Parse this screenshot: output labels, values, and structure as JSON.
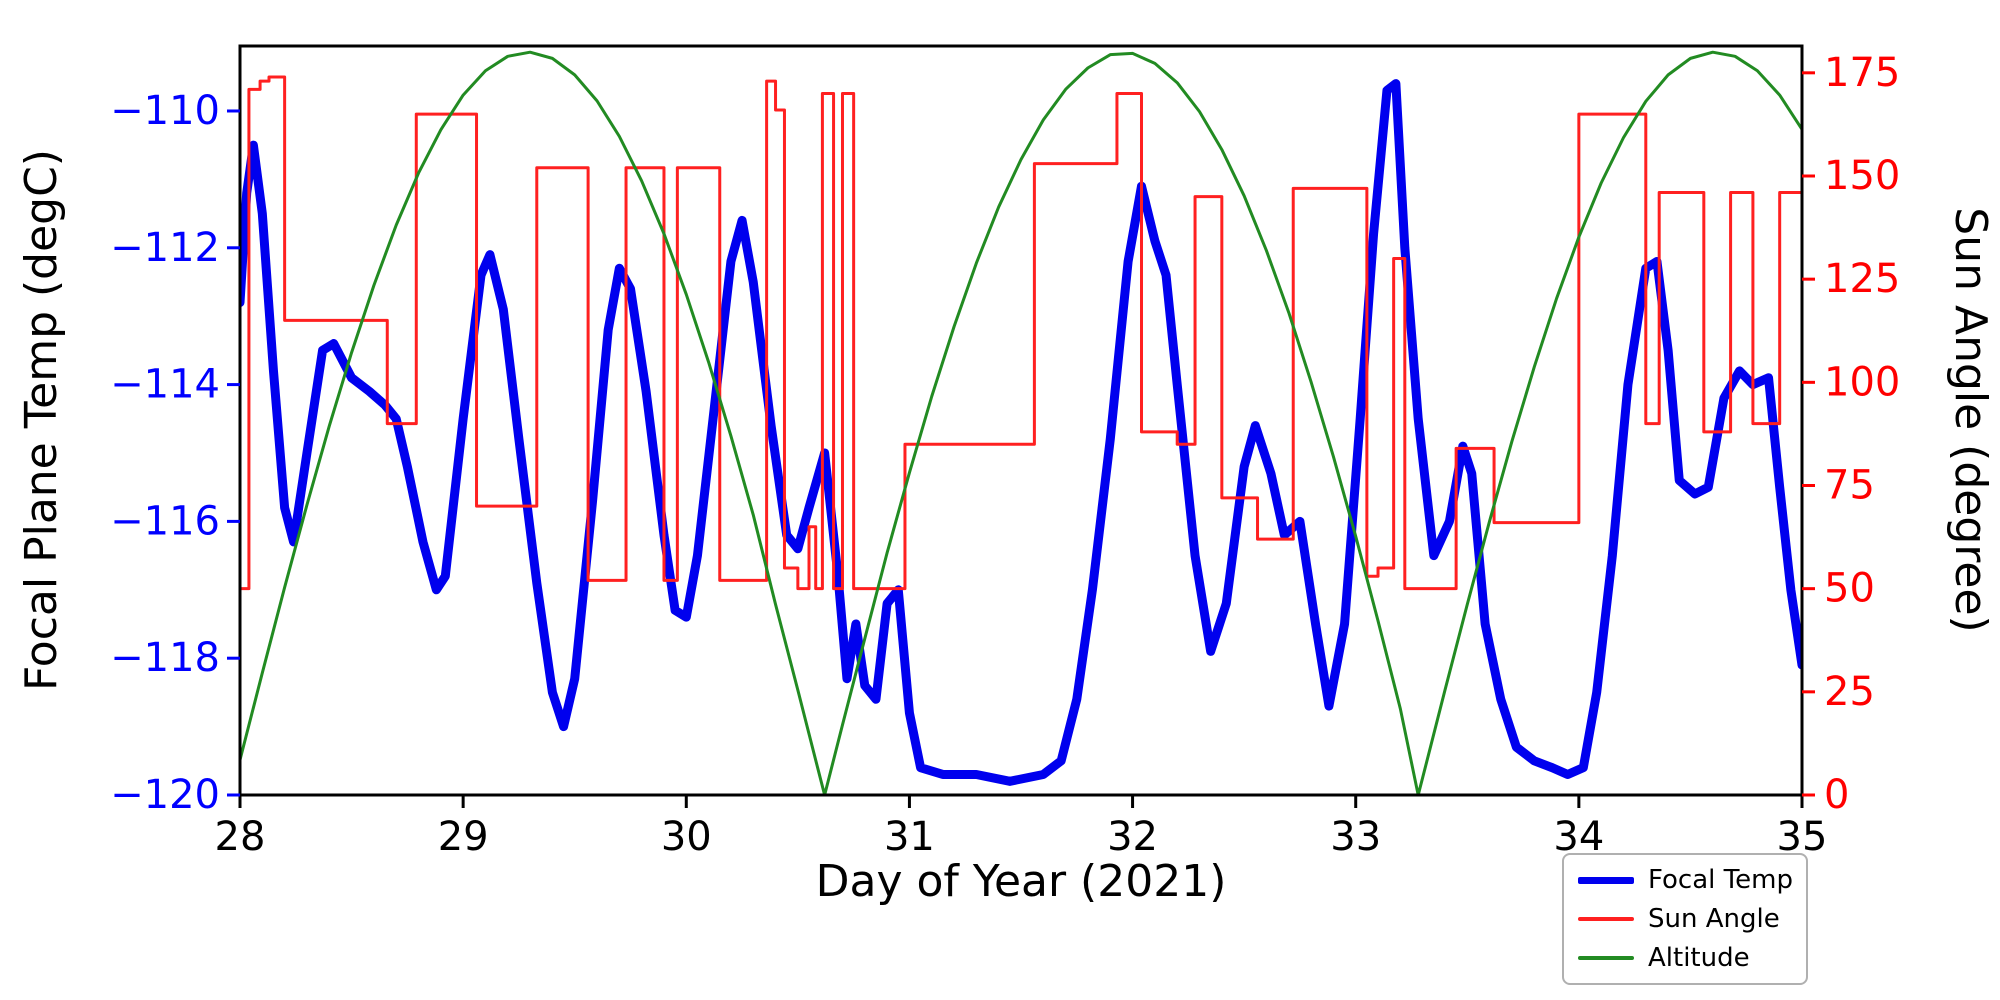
{
  "figure": {
    "xlabel": "Day of Year (2021)",
    "ylabel_left": "Focal Plane Temp (degC)",
    "ylabel_right": "Sun Angle (degree)"
  },
  "chart_data": {
    "type": "line",
    "title": "",
    "xlabel": "Day of Year (2021)",
    "ylabel_left": "Focal Plane Temp (degC)",
    "ylabel_right": "Sun Angle (degree)",
    "xlim": [
      28,
      35
    ],
    "ylim_left": [
      -120,
      -109.05
    ],
    "ylim_right": [
      0,
      181.5
    ],
    "xticks": [
      28,
      29,
      30,
      31,
      32,
      33,
      34,
      35
    ],
    "xtick_labels": [
      "28",
      "29",
      "30",
      "31",
      "32",
      "33",
      "34",
      "35"
    ],
    "yticks_left": [
      -110,
      -112,
      -114,
      -116,
      -118,
      -120
    ],
    "ytick_labels_left": [
      "−110",
      "−112",
      "−114",
      "−116",
      "−118",
      "−120"
    ],
    "yticks_right": [
      0,
      25,
      50,
      75,
      100,
      125,
      150,
      175
    ],
    "ytick_labels_right": [
      "0",
      "25",
      "50",
      "75",
      "100",
      "125",
      "150",
      "175"
    ],
    "grid": false,
    "legend_position": "lower-right-outside",
    "axis_colors": {
      "left_ticks": "#0000ff",
      "right_ticks": "#ff0000",
      "spine": "#000000",
      "xlabel": "#000000"
    },
    "series": [
      {
        "name": "Focal Temp",
        "color": "#0000ee",
        "width": 9,
        "axis": "left",
        "style": "line",
        "x": [
          28.0,
          28.03,
          28.06,
          28.1,
          28.15,
          28.2,
          28.24,
          28.3,
          28.37,
          28.42,
          28.5,
          28.58,
          28.65,
          28.7,
          28.75,
          28.82,
          28.88,
          28.92,
          29.0,
          29.08,
          29.12,
          29.18,
          29.25,
          29.33,
          29.4,
          29.45,
          29.5,
          29.58,
          29.65,
          29.7,
          29.75,
          29.82,
          29.9,
          29.95,
          30.0,
          30.05,
          30.12,
          30.2,
          30.25,
          30.3,
          30.38,
          30.45,
          30.5,
          30.55,
          30.62,
          30.68,
          30.72,
          30.76,
          30.8,
          30.85,
          30.9,
          30.95,
          31.0,
          31.05,
          31.15,
          31.3,
          31.45,
          31.6,
          31.68,
          31.75,
          31.82,
          31.9,
          31.98,
          32.04,
          32.1,
          32.15,
          32.2,
          32.28,
          32.35,
          32.42,
          32.5,
          32.55,
          32.62,
          32.68,
          32.75,
          32.82,
          32.88,
          32.95,
          33.02,
          33.08,
          33.14,
          33.18,
          33.22,
          33.28,
          33.35,
          33.42,
          33.48,
          33.52,
          33.58,
          33.65,
          33.72,
          33.8,
          33.88,
          33.95,
          34.02,
          34.08,
          34.15,
          34.22,
          34.3,
          34.35,
          34.4,
          34.45,
          34.52,
          34.58,
          34.65,
          34.72,
          34.78,
          34.85,
          34.9,
          34.95,
          35.0
        ],
        "y": [
          -112.8,
          -111.2,
          -110.5,
          -111.5,
          -113.8,
          -115.8,
          -116.3,
          -115.0,
          -113.5,
          -113.4,
          -113.9,
          -114.1,
          -114.3,
          -114.5,
          -115.2,
          -116.3,
          -117.0,
          -116.8,
          -114.5,
          -112.4,
          -112.1,
          -112.9,
          -114.8,
          -116.9,
          -118.5,
          -119.0,
          -118.3,
          -115.7,
          -113.2,
          -112.3,
          -112.6,
          -114.1,
          -116.2,
          -117.3,
          -117.4,
          -116.5,
          -114.5,
          -112.2,
          -111.6,
          -112.5,
          -114.6,
          -116.2,
          -116.4,
          -115.8,
          -115.0,
          -116.8,
          -118.3,
          -117.5,
          -118.4,
          -118.6,
          -117.2,
          -117.0,
          -118.8,
          -119.6,
          -119.7,
          -119.7,
          -119.8,
          -119.7,
          -119.5,
          -118.6,
          -117.0,
          -114.8,
          -112.2,
          -111.1,
          -111.9,
          -112.4,
          -114.0,
          -116.5,
          -117.9,
          -117.2,
          -115.2,
          -114.6,
          -115.3,
          -116.2,
          -116.0,
          -117.5,
          -118.7,
          -117.5,
          -114.5,
          -111.8,
          -109.7,
          -109.6,
          -112.0,
          -114.5,
          -116.5,
          -116.0,
          -114.9,
          -115.3,
          -117.5,
          -118.6,
          -119.3,
          -119.5,
          -119.6,
          -119.7,
          -119.6,
          -118.5,
          -116.5,
          -114.0,
          -112.3,
          -112.2,
          -113.5,
          -115.4,
          -115.6,
          -115.5,
          -114.2,
          -113.8,
          -114.0,
          -113.9,
          -115.5,
          -117.0,
          -118.1
        ]
      },
      {
        "name": "Sun Angle",
        "color": "#ff2020",
        "width": 3,
        "axis": "right",
        "style": "step",
        "x": [
          28.0,
          28.04,
          28.09,
          28.13,
          28.2,
          28.66,
          28.79,
          29.06,
          29.33,
          29.56,
          29.73,
          29.9,
          29.96,
          30.15,
          30.36,
          30.4,
          30.44,
          30.5,
          30.55,
          30.58,
          30.61,
          30.66,
          30.7,
          30.75,
          30.98,
          31.56,
          31.93,
          32.04,
          32.2,
          32.28,
          32.4,
          32.56,
          32.72,
          33.05,
          33.1,
          33.17,
          33.22,
          33.45,
          33.62,
          34.0,
          34.3,
          34.36,
          34.56,
          34.68,
          34.78,
          34.9,
          35.0
        ],
        "y": [
          50,
          171,
          173,
          174,
          115,
          90,
          165,
          70,
          152,
          52,
          152,
          52,
          152,
          52,
          173,
          166,
          55,
          50,
          65,
          50,
          170,
          50,
          170,
          50,
          85,
          153,
          170,
          88,
          85,
          145,
          72,
          62,
          147,
          53,
          55,
          130,
          50,
          84,
          66,
          165,
          90,
          146,
          88,
          146,
          90,
          146,
          146
        ]
      },
      {
        "name": "Altitude",
        "color": "#228b22",
        "width": 3,
        "axis": "right",
        "style": "line",
        "x": [
          28.0,
          28.1,
          28.2,
          28.3,
          28.4,
          28.5,
          28.6,
          28.7,
          28.8,
          28.9,
          29.0,
          29.1,
          29.2,
          29.3,
          29.4,
          29.5,
          29.6,
          29.7,
          29.8,
          29.9,
          30.0,
          30.1,
          30.2,
          30.3,
          30.4,
          30.5,
          30.6,
          30.62,
          30.7,
          30.8,
          30.9,
          31.0,
          31.1,
          31.2,
          31.3,
          31.4,
          31.5,
          31.6,
          31.7,
          31.8,
          31.9,
          32.0,
          32.1,
          32.2,
          32.3,
          32.4,
          32.5,
          32.6,
          32.7,
          32.8,
          32.9,
          33.0,
          33.1,
          33.2,
          33.28,
          33.3,
          33.4,
          33.5,
          33.6,
          33.7,
          33.8,
          33.9,
          34.0,
          34.1,
          34.2,
          34.3,
          34.4,
          34.5,
          34.6,
          34.7,
          34.8,
          34.9,
          35.0
        ],
        "y": [
          8.5,
          29.6,
          50.3,
          70.3,
          89.4,
          107.2,
          123.5,
          138.1,
          150.7,
          161.2,
          169.6,
          175.5,
          179.0,
          180.0,
          178.5,
          174.5,
          168.2,
          159.6,
          148.8,
          136.0,
          121.3,
          104.9,
          87.0,
          67.9,
          46.2,
          25.4,
          4.2,
          0.0,
          17.0,
          37.9,
          58.7,
          78.1,
          96.6,
          113.5,
          128.9,
          142.5,
          154.0,
          163.6,
          171.0,
          176.2,
          179.4,
          179.7,
          177.3,
          172.6,
          165.6,
          156.4,
          145.2,
          131.9,
          116.9,
          100.1,
          82.0,
          62.7,
          42.2,
          20.9,
          0.0,
          4.2,
          25.4,
          46.2,
          66.4,
          85.7,
          103.7,
          120.3,
          135.2,
          148.3,
          159.3,
          168.1,
          174.5,
          178.5,
          180.0,
          179.0,
          175.5,
          169.6,
          161.3
        ]
      }
    ]
  }
}
